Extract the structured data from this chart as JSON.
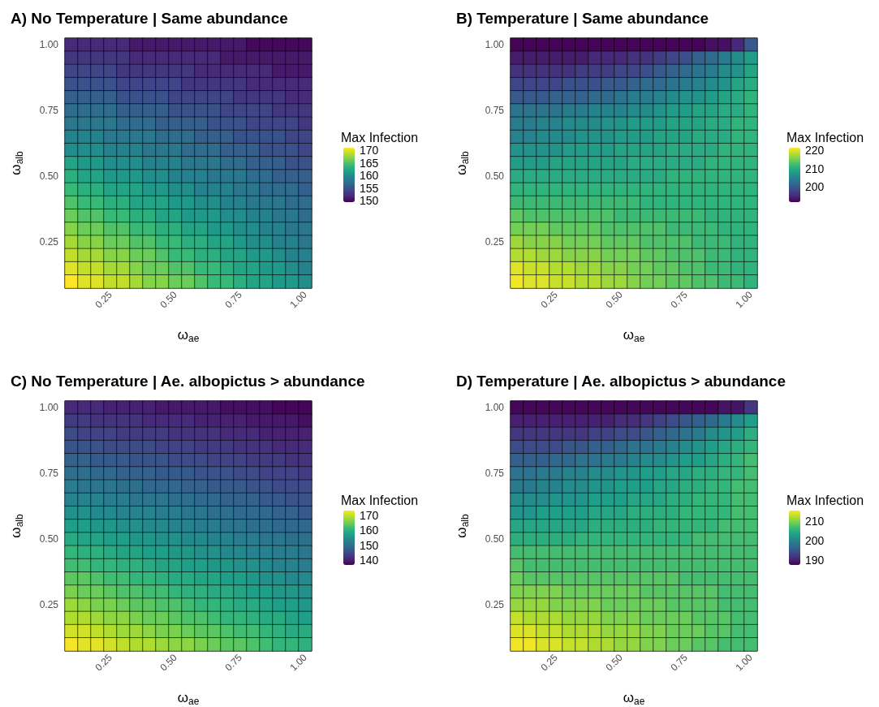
{
  "chart_data": [
    {
      "type": "heatmap",
      "title": "A) No Temperature | Same abundance",
      "xlabel": "ω$_{ae}$",
      "ylabel": "ω$_{alb}$",
      "clabel": "Max Infection",
      "categories": [
        null,
        null,
        null,
        "0.25",
        null,
        null,
        null,
        null,
        "0.50",
        null,
        null,
        null,
        null,
        "0.75",
        null,
        null,
        null,
        null,
        "1.00"
      ],
      "y_categories": [
        "1.00",
        null,
        null,
        null,
        null,
        "0.75",
        null,
        null,
        null,
        null,
        "0.50",
        null,
        null,
        null,
        null,
        "0.25",
        null,
        null,
        null
      ],
      "clim": [
        149.5,
        171
      ],
      "cticks": [
        150,
        155,
        160,
        165,
        170
      ],
      "cells": [
        [
          152,
          152,
          152,
          152,
          152,
          151,
          151,
          151,
          151,
          151,
          151,
          151,
          151,
          151,
          150,
          150,
          150,
          150,
          150
        ],
        [
          153,
          153,
          153,
          153,
          153,
          152,
          152,
          152,
          152,
          152,
          152,
          152,
          151,
          151,
          151,
          151,
          151,
          151,
          151
        ],
        [
          154,
          154,
          154,
          154,
          153,
          153,
          153,
          153,
          153,
          153,
          152,
          152,
          152,
          152,
          152,
          152,
          151,
          151,
          151
        ],
        [
          155,
          155,
          155,
          155,
          154,
          154,
          154,
          154,
          154,
          153,
          153,
          153,
          153,
          153,
          152,
          152,
          152,
          152,
          152
        ],
        [
          156,
          156,
          156,
          156,
          155,
          155,
          155,
          155,
          154,
          154,
          154,
          154,
          154,
          153,
          153,
          153,
          153,
          152,
          152
        ],
        [
          157,
          157,
          157,
          157,
          156,
          156,
          156,
          156,
          155,
          155,
          155,
          155,
          154,
          154,
          154,
          154,
          153,
          153,
          153
        ],
        [
          158,
          158,
          158,
          158,
          157,
          157,
          157,
          156,
          156,
          156,
          156,
          155,
          155,
          155,
          154,
          154,
          154,
          154,
          153
        ],
        [
          159,
          159,
          159,
          158,
          158,
          158,
          158,
          157,
          157,
          157,
          156,
          156,
          156,
          155,
          155,
          155,
          155,
          154,
          154
        ],
        [
          160,
          160,
          160,
          159,
          159,
          159,
          158,
          158,
          158,
          157,
          157,
          157,
          156,
          156,
          156,
          155,
          155,
          155,
          154
        ],
        [
          162,
          161,
          161,
          160,
          160,
          160,
          159,
          159,
          159,
          158,
          158,
          158,
          157,
          157,
          156,
          156,
          156,
          155,
          155
        ],
        [
          163,
          162,
          162,
          161,
          161,
          161,
          160,
          160,
          159,
          159,
          159,
          158,
          158,
          158,
          157,
          157,
          156,
          156,
          156
        ],
        [
          164,
          163,
          163,
          162,
          162,
          162,
          161,
          161,
          160,
          160,
          159,
          159,
          159,
          158,
          158,
          157,
          157,
          157,
          156
        ],
        [
          165,
          164,
          164,
          163,
          163,
          162,
          162,
          162,
          161,
          161,
          160,
          160,
          159,
          159,
          158,
          158,
          158,
          157,
          157
        ],
        [
          166,
          165,
          165,
          164,
          164,
          163,
          163,
          162,
          162,
          161,
          161,
          161,
          160,
          160,
          159,
          159,
          158,
          158,
          157
        ],
        [
          167,
          166,
          166,
          165,
          165,
          164,
          164,
          163,
          163,
          162,
          162,
          161,
          161,
          160,
          160,
          159,
          159,
          158,
          158
        ],
        [
          168,
          167,
          167,
          166,
          166,
          165,
          165,
          164,
          164,
          163,
          163,
          162,
          162,
          161,
          160,
          160,
          159,
          159,
          158
        ],
        [
          169,
          168,
          168,
          167,
          167,
          166,
          166,
          165,
          164,
          164,
          163,
          163,
          162,
          162,
          161,
          161,
          160,
          159,
          159
        ],
        [
          170,
          169,
          169,
          168,
          168,
          167,
          166,
          166,
          165,
          165,
          164,
          164,
          163,
          162,
          162,
          161,
          161,
          160,
          159
        ],
        [
          171,
          170,
          170,
          169,
          169,
          168,
          167,
          167,
          166,
          166,
          165,
          164,
          164,
          163,
          162,
          162,
          161,
          161,
          160
        ]
      ]
    },
    {
      "type": "heatmap",
      "title": "B) Temperature | Same abundance",
      "xlabel": "ω$_{ae}$",
      "ylabel": "ω$_{alb}$",
      "clabel": "Max Infection",
      "categories": [
        null,
        null,
        null,
        "0.25",
        null,
        null,
        null,
        null,
        "0.50",
        null,
        null,
        null,
        null,
        "0.75",
        null,
        null,
        null,
        null,
        "1.00"
      ],
      "y_categories": [
        "1.00",
        null,
        null,
        null,
        null,
        "0.75",
        null,
        null,
        null,
        null,
        "0.50",
        null,
        null,
        null,
        null,
        "0.25",
        null,
        null,
        null
      ],
      "clim": [
        191.7,
        221.5
      ],
      "cticks": [
        200,
        210,
        220
      ],
      "cells": [
        [
          192,
          192,
          192,
          192,
          192,
          192,
          192,
          192,
          192,
          192,
          192,
          192,
          192,
          192,
          192,
          193,
          193,
          195,
          200
        ],
        [
          194,
          194,
          194,
          194,
          194,
          194,
          195,
          195,
          195,
          196,
          196,
          197,
          198,
          199,
          201,
          202,
          204,
          206,
          208
        ],
        [
          196,
          196,
          196,
          196,
          196,
          197,
          197,
          197,
          198,
          198,
          199,
          200,
          201,
          202,
          203,
          204,
          206,
          207,
          209
        ],
        [
          198,
          198,
          198,
          198,
          199,
          199,
          199,
          200,
          200,
          201,
          202,
          202,
          203,
          204,
          205,
          206,
          207,
          209,
          210
        ],
        [
          200,
          200,
          200,
          201,
          201,
          201,
          202,
          202,
          203,
          204,
          204,
          205,
          206,
          207,
          207,
          208,
          209,
          210,
          211
        ],
        [
          203,
          203,
          203,
          203,
          204,
          204,
          205,
          205,
          205,
          206,
          206,
          207,
          208,
          208,
          209,
          209,
          210,
          210,
          211
        ],
        [
          204,
          204,
          205,
          205,
          206,
          206,
          206,
          207,
          207,
          208,
          208,
          208,
          209,
          209,
          209,
          210,
          210,
          211,
          211
        ],
        [
          205,
          205,
          206,
          206,
          206,
          207,
          207,
          207,
          208,
          208,
          208,
          209,
          209,
          209,
          210,
          210,
          210,
          211,
          211
        ],
        [
          207,
          207,
          207,
          207,
          208,
          208,
          208,
          208,
          209,
          209,
          209,
          209,
          210,
          210,
          210,
          210,
          211,
          211,
          211
        ],
        [
          208,
          208,
          208,
          209,
          209,
          209,
          209,
          209,
          209,
          210,
          210,
          210,
          210,
          210,
          210,
          211,
          211,
          211,
          211
        ],
        [
          210,
          210,
          210,
          210,
          210,
          210,
          210,
          210,
          210,
          210,
          210,
          210,
          211,
          211,
          211,
          211,
          211,
          211,
          211
        ],
        [
          211,
          211,
          211,
          211,
          211,
          211,
          211,
          211,
          211,
          211,
          211,
          211,
          211,
          211,
          211,
          211,
          211,
          211,
          211
        ],
        [
          212,
          212,
          212,
          212,
          212,
          212,
          212,
          212,
          212,
          212,
          211,
          211,
          211,
          211,
          211,
          211,
          211,
          211,
          211
        ],
        [
          214,
          213,
          213,
          213,
          213,
          213,
          213,
          213,
          212,
          212,
          212,
          212,
          212,
          212,
          212,
          211,
          211,
          211,
          211
        ],
        [
          215,
          215,
          215,
          214,
          214,
          214,
          214,
          213,
          213,
          213,
          213,
          213,
          212,
          212,
          212,
          212,
          211,
          211,
          211
        ],
        [
          217,
          216,
          216,
          216,
          215,
          215,
          215,
          214,
          214,
          214,
          213,
          213,
          213,
          213,
          212,
          212,
          212,
          211,
          211
        ],
        [
          218,
          218,
          217,
          217,
          216,
          216,
          216,
          215,
          215,
          215,
          214,
          214,
          213,
          213,
          213,
          212,
          212,
          211,
          211
        ],
        [
          220,
          219,
          219,
          218,
          218,
          217,
          217,
          216,
          216,
          215,
          215,
          214,
          214,
          213,
          213,
          212,
          212,
          211,
          211
        ],
        [
          221,
          220,
          220,
          219,
          219,
          218,
          218,
          217,
          217,
          216,
          215,
          215,
          214,
          214,
          213,
          213,
          212,
          212,
          211
        ]
      ]
    },
    {
      "type": "heatmap",
      "title": "C) No Temperature | Ae. albopictus > abundance",
      "xlabel": "ω$_{ae}$",
      "ylabel": "ω$_{alb}$",
      "clabel": "Max Infection",
      "categories": [
        null,
        null,
        null,
        "0.25",
        null,
        null,
        null,
        null,
        "0.50",
        null,
        null,
        null,
        null,
        "0.75",
        null,
        null,
        null,
        null,
        "1.00"
      ],
      "y_categories": [
        "1.00",
        null,
        null,
        null,
        null,
        "0.75",
        null,
        null,
        null,
        null,
        "0.50",
        null,
        null,
        null,
        null,
        "0.25",
        null,
        null,
        null
      ],
      "clim": [
        136.5,
        173.5
      ],
      "cticks": [
        140,
        150,
        160,
        170
      ],
      "cells": [
        [
          141,
          141,
          141,
          140,
          140,
          140,
          140,
          139,
          139,
          139,
          139,
          139,
          138,
          138,
          138,
          138,
          137,
          137,
          137
        ],
        [
          143,
          143,
          142,
          142,
          142,
          142,
          141,
          141,
          141,
          141,
          140,
          140,
          140,
          140,
          139,
          139,
          139,
          139,
          138
        ],
        [
          145,
          144,
          144,
          144,
          143,
          143,
          143,
          143,
          142,
          142,
          142,
          142,
          141,
          141,
          141,
          140,
          140,
          140,
          140
        ],
        [
          146,
          146,
          146,
          145,
          145,
          145,
          145,
          144,
          144,
          144,
          143,
          143,
          143,
          142,
          142,
          142,
          141,
          141,
          141
        ],
        [
          148,
          148,
          147,
          147,
          147,
          146,
          146,
          146,
          145,
          145,
          145,
          144,
          144,
          144,
          143,
          143,
          143,
          142,
          142
        ],
        [
          150,
          150,
          149,
          149,
          148,
          148,
          148,
          147,
          147,
          147,
          146,
          146,
          146,
          145,
          145,
          144,
          144,
          144,
          143
        ],
        [
          152,
          151,
          151,
          151,
          150,
          150,
          149,
          149,
          149,
          148,
          148,
          147,
          147,
          147,
          146,
          146,
          145,
          145,
          145
        ],
        [
          153,
          153,
          153,
          152,
          152,
          151,
          151,
          151,
          150,
          150,
          149,
          149,
          148,
          148,
          148,
          147,
          147,
          146,
          146
        ],
        [
          155,
          155,
          154,
          154,
          153,
          153,
          153,
          152,
          152,
          151,
          151,
          150,
          150,
          149,
          149,
          149,
          148,
          148,
          147
        ],
        [
          157,
          157,
          156,
          156,
          155,
          155,
          154,
          154,
          153,
          153,
          152,
          152,
          151,
          151,
          150,
          150,
          149,
          149,
          149
        ],
        [
          159,
          158,
          158,
          157,
          157,
          156,
          156,
          155,
          155,
          154,
          154,
          153,
          153,
          152,
          152,
          151,
          151,
          150,
          150
        ],
        [
          161,
          160,
          160,
          159,
          158,
          158,
          157,
          157,
          156,
          156,
          155,
          155,
          154,
          154,
          153,
          153,
          152,
          152,
          151
        ],
        [
          162,
          162,
          161,
          161,
          160,
          160,
          159,
          158,
          158,
          157,
          157,
          156,
          156,
          155,
          155,
          154,
          153,
          153,
          152
        ],
        [
          164,
          164,
          163,
          162,
          162,
          161,
          161,
          160,
          159,
          159,
          158,
          158,
          157,
          157,
          156,
          155,
          155,
          154,
          154
        ],
        [
          166,
          165,
          165,
          164,
          163,
          163,
          162,
          162,
          161,
          160,
          160,
          159,
          159,
          158,
          157,
          157,
          156,
          156,
          155
        ],
        [
          168,
          167,
          166,
          166,
          165,
          164,
          164,
          163,
          163,
          162,
          161,
          161,
          160,
          159,
          159,
          158,
          157,
          157,
          156
        ],
        [
          169,
          169,
          168,
          167,
          167,
          166,
          165,
          165,
          164,
          163,
          163,
          162,
          161,
          161,
          160,
          159,
          159,
          158,
          157
        ],
        [
          171,
          171,
          170,
          169,
          168,
          168,
          167,
          166,
          166,
          165,
          164,
          164,
          163,
          162,
          162,
          161,
          160,
          159,
          159
        ],
        [
          173,
          172,
          172,
          171,
          170,
          169,
          169,
          168,
          167,
          167,
          166,
          165,
          164,
          164,
          163,
          162,
          161,
          161,
          160
        ]
      ]
    },
    {
      "type": "heatmap",
      "title": "D) Temperature | Ae. albopictus > abundance",
      "xlabel": "ω$_{ae}$",
      "ylabel": "ω$_{alb}$",
      "clabel": "Max Infection",
      "categories": [
        null,
        null,
        null,
        "0.25",
        null,
        null,
        null,
        null,
        "0.50",
        null,
        null,
        null,
        null,
        "0.75",
        null,
        null,
        null,
        null,
        "1.00"
      ],
      "y_categories": [
        "1.00",
        null,
        null,
        null,
        null,
        "0.75",
        null,
        null,
        null,
        null,
        "0.50",
        null,
        null,
        null,
        null,
        "0.25",
        null,
        null,
        null
      ],
      "clim": [
        187.5,
        215.5
      ],
      "cticks": [
        190,
        200,
        210
      ],
      "cells": [
        [
          188,
          188,
          188,
          188,
          188,
          188,
          188,
          188,
          188,
          188,
          188,
          188,
          188,
          188,
          188,
          188,
          189,
          189,
          192
        ],
        [
          190,
          190,
          190,
          190,
          190,
          190,
          190,
          190,
          191,
          191,
          192,
          193,
          194,
          195,
          196,
          197,
          199,
          201,
          203
        ],
        [
          192,
          192,
          192,
          192,
          192,
          192,
          193,
          193,
          194,
          194,
          195,
          196,
          197,
          198,
          199,
          201,
          202,
          203,
          205
        ],
        [
          194,
          194,
          194,
          194,
          195,
          195,
          196,
          196,
          197,
          198,
          198,
          199,
          200,
          201,
          202,
          203,
          204,
          205,
          206
        ],
        [
          196,
          196,
          196,
          197,
          197,
          198,
          198,
          199,
          199,
          200,
          201,
          201,
          202,
          203,
          203,
          204,
          205,
          206,
          207
        ],
        [
          198,
          198,
          199,
          199,
          200,
          200,
          201,
          201,
          202,
          202,
          203,
          203,
          204,
          204,
          205,
          205,
          206,
          206,
          207
        ],
        [
          199,
          199,
          200,
          200,
          201,
          201,
          202,
          202,
          203,
          203,
          203,
          204,
          204,
          205,
          205,
          206,
          206,
          207,
          207
        ],
        [
          201,
          201,
          201,
          202,
          202,
          202,
          203,
          203,
          203,
          204,
          204,
          204,
          205,
          205,
          206,
          206,
          206,
          207,
          207
        ],
        [
          202,
          202,
          203,
          203,
          203,
          203,
          204,
          204,
          204,
          205,
          205,
          205,
          205,
          206,
          206,
          206,
          206,
          207,
          207
        ],
        [
          204,
          204,
          204,
          204,
          204,
          204,
          205,
          205,
          205,
          205,
          205,
          206,
          206,
          206,
          206,
          206,
          207,
          207,
          207
        ],
        [
          205,
          205,
          205,
          205,
          205,
          206,
          206,
          206,
          206,
          206,
          206,
          206,
          206,
          206,
          207,
          207,
          207,
          207,
          207
        ],
        [
          207,
          207,
          207,
          207,
          207,
          207,
          207,
          207,
          207,
          207,
          207,
          207,
          207,
          207,
          207,
          207,
          207,
          207,
          207
        ],
        [
          208,
          207,
          207,
          207,
          207,
          207,
          207,
          207,
          207,
          207,
          207,
          207,
          207,
          207,
          207,
          207,
          207,
          207,
          207
        ],
        [
          209,
          208,
          208,
          208,
          208,
          208,
          208,
          208,
          208,
          208,
          208,
          208,
          208,
          207,
          207,
          207,
          207,
          207,
          207
        ],
        [
          210,
          210,
          210,
          210,
          209,
          209,
          209,
          209,
          209,
          209,
          208,
          208,
          208,
          208,
          208,
          208,
          207,
          207,
          207
        ],
        [
          211,
          211,
          211,
          210,
          210,
          210,
          210,
          209,
          209,
          209,
          209,
          209,
          208,
          208,
          208,
          208,
          207,
          207,
          207
        ],
        [
          213,
          212,
          212,
          212,
          211,
          211,
          211,
          210,
          210,
          210,
          209,
          209,
          209,
          209,
          208,
          208,
          208,
          207,
          207
        ],
        [
          214,
          214,
          213,
          213,
          212,
          212,
          212,
          211,
          211,
          211,
          210,
          210,
          209,
          209,
          209,
          208,
          208,
          207,
          207
        ],
        [
          215,
          215,
          214,
          214,
          213,
          213,
          212,
          212,
          211,
          211,
          210,
          210,
          209,
          209,
          208,
          208,
          207,
          207,
          207
        ]
      ]
    }
  ]
}
